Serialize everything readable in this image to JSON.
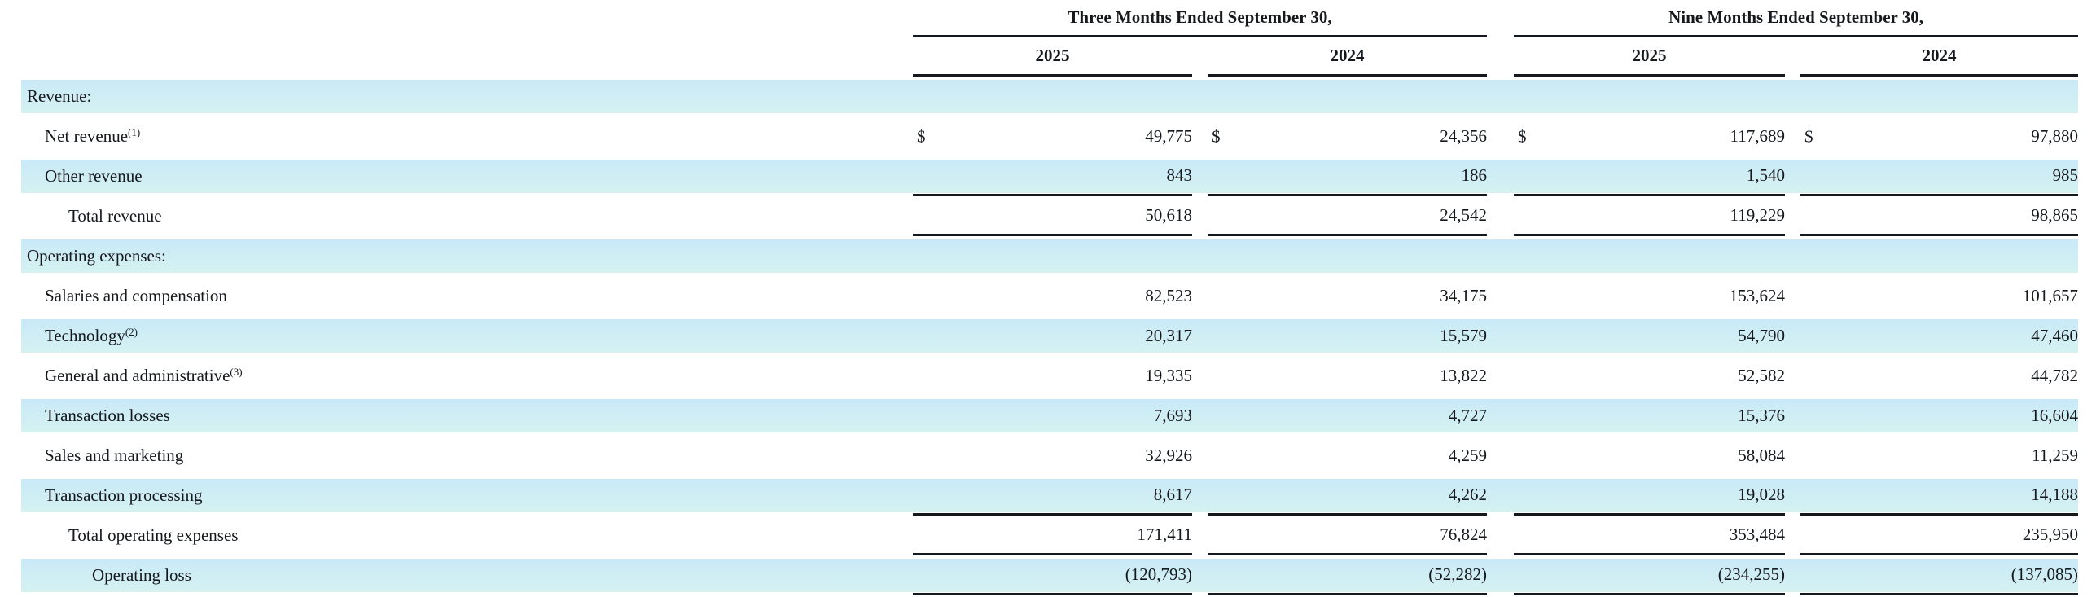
{
  "table": {
    "currency_symbol": "$",
    "groups": [
      "Three Months Ended September 30,",
      "Nine Months Ended September 30,"
    ],
    "years": [
      "2025",
      "2024",
      "2025",
      "2024"
    ],
    "rows": [
      {
        "label": "Revenue:",
        "indent": 0,
        "highlight": true,
        "section": true,
        "values": [
          "",
          "",
          "",
          ""
        ]
      },
      {
        "label": "Net revenue",
        "sup": "(1)",
        "indent": 1,
        "highlight": false,
        "dollar": true,
        "values": [
          "49,775",
          "24,356",
          "117,689",
          "97,880"
        ]
      },
      {
        "label": "Other revenue",
        "indent": 1,
        "highlight": true,
        "rule_below": true,
        "values": [
          "843",
          "186",
          "1,540",
          "985"
        ]
      },
      {
        "label": "Total revenue",
        "indent": 2,
        "highlight": false,
        "rule_below": true,
        "values": [
          "50,618",
          "24,542",
          "119,229",
          "98,865"
        ]
      },
      {
        "label": "Operating expenses:",
        "indent": 0,
        "highlight": true,
        "section": true,
        "values": [
          "",
          "",
          "",
          ""
        ]
      },
      {
        "label": "Salaries and compensation",
        "indent": 1,
        "highlight": false,
        "values": [
          "82,523",
          "34,175",
          "153,624",
          "101,657"
        ]
      },
      {
        "label": "Technology",
        "sup": "(2)",
        "indent": 1,
        "highlight": true,
        "values": [
          "20,317",
          "15,579",
          "54,790",
          "47,460"
        ]
      },
      {
        "label": "General and administrative",
        "sup": "(3)",
        "indent": 1,
        "highlight": false,
        "values": [
          "19,335",
          "13,822",
          "52,582",
          "44,782"
        ]
      },
      {
        "label": "Transaction losses",
        "indent": 1,
        "highlight": true,
        "values": [
          "7,693",
          "4,727",
          "15,376",
          "16,604"
        ]
      },
      {
        "label": "Sales and marketing",
        "indent": 1,
        "highlight": false,
        "values": [
          "32,926",
          "4,259",
          "58,084",
          "11,259"
        ]
      },
      {
        "label": "Transaction processing",
        "indent": 1,
        "highlight": true,
        "rule_below": true,
        "values": [
          "8,617",
          "4,262",
          "19,028",
          "14,188"
        ]
      },
      {
        "label": "Total operating expenses",
        "indent": 2,
        "highlight": false,
        "rule_below": true,
        "values": [
          "171,411",
          "76,824",
          "353,484",
          "235,950"
        ]
      },
      {
        "label": "Operating loss",
        "indent": 3,
        "highlight": true,
        "rule_below": true,
        "values": [
          "(120,793)",
          "(52,282)",
          "(234,255)",
          "(137,085)"
        ]
      }
    ]
  },
  "colors": {
    "highlight_top": "#c9e9f8",
    "highlight_bottom": "#d5f2f1",
    "rule": "#15181d",
    "text": "#15181d",
    "background": "#ffffff"
  }
}
